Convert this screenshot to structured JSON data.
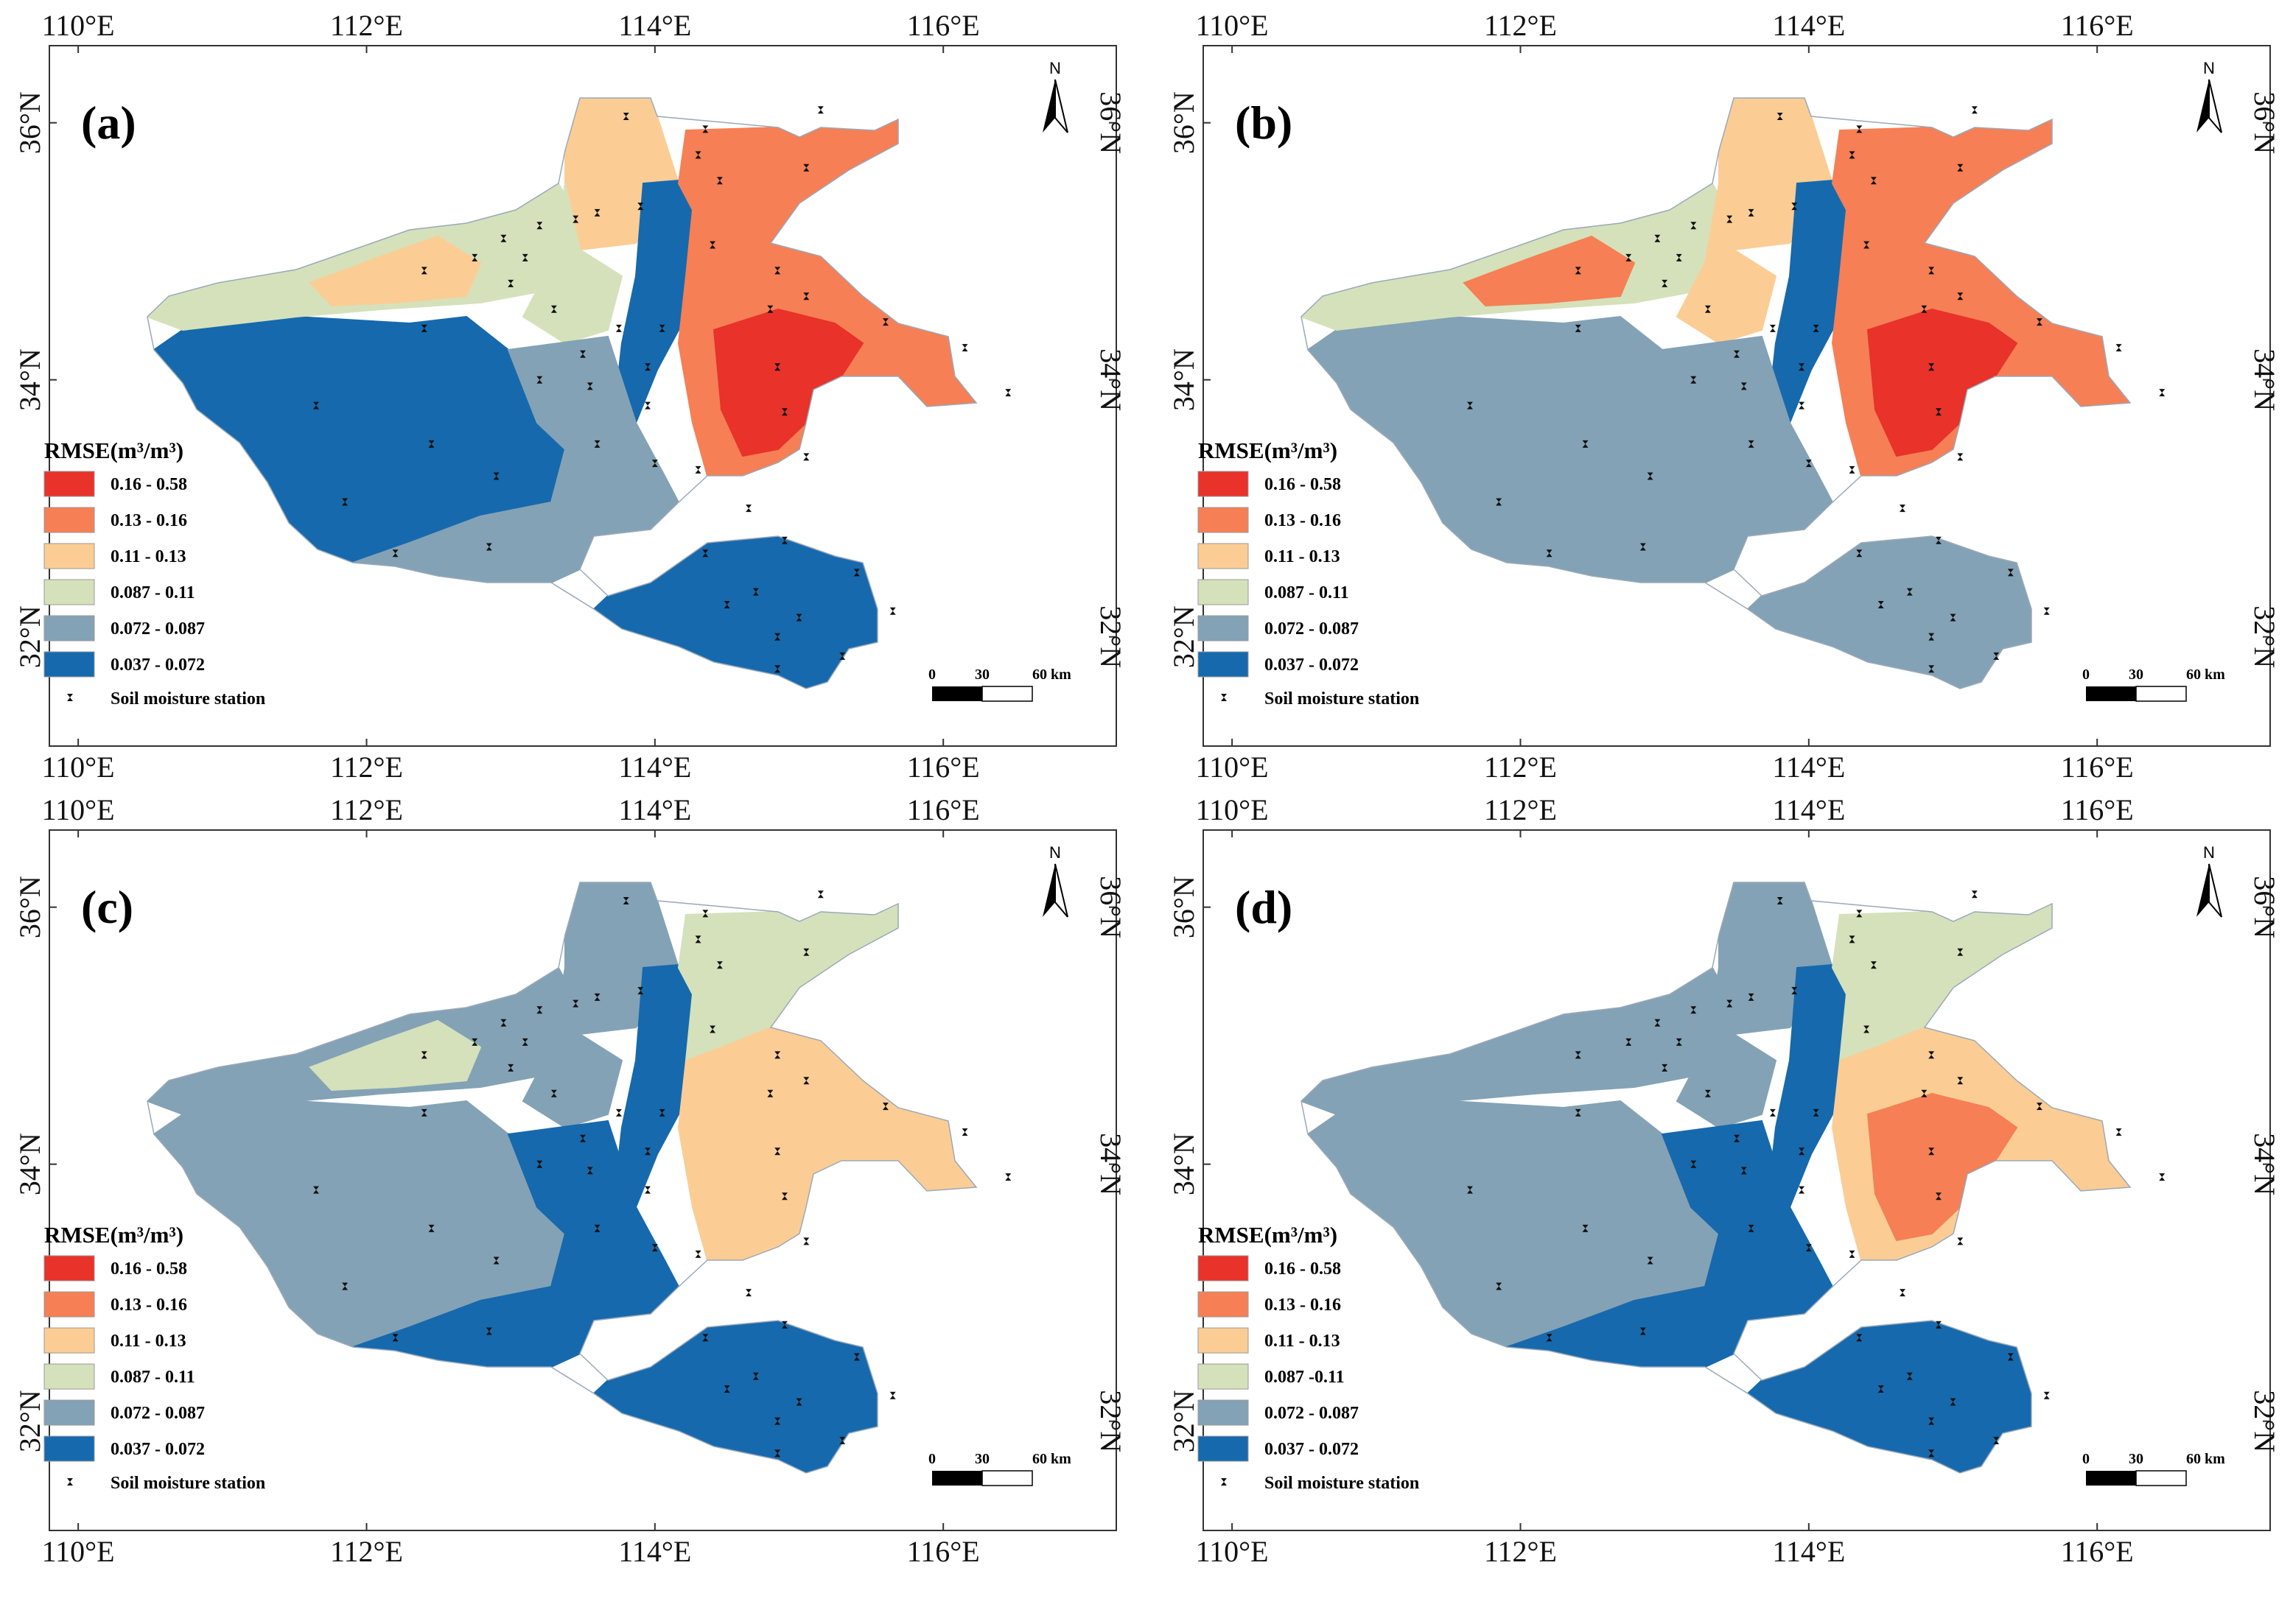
{
  "figure": {
    "lon_labels": [
      "110°E",
      "112°E",
      "114°E",
      "116°E"
    ],
    "lat_labels": [
      "36°N",
      "34°N",
      "32°N"
    ],
    "north_label": "N",
    "scale_labels": [
      "0",
      "30",
      "60 km"
    ],
    "legend_title": "RMSE(m³/m³)",
    "station_label": "Soil moisture station",
    "colors": [
      "#e8322a",
      "#f67f55",
      "#fbcd95",
      "#d5e1bb",
      "#84a2b5",
      "#1769ad"
    ]
  },
  "panels": [
    {
      "label": "(a)",
      "classes": [
        "0.16 - 0.58",
        "0.13 - 0.16",
        "0.11 - 0.13",
        "0.087 - 0.11",
        "0.072 - 0.087",
        "0.037 - 0.072"
      ],
      "fills": {
        "nw": "#fbcd95",
        "w": "#d5e1bb",
        "sw": "#1769ad",
        "c": "#84a2b5",
        "n": "#fbcd95",
        "nc": "#d5e1bb",
        "strip": "#1769ad",
        "ne": "#f67f55",
        "e": "#f67f55",
        "eh": "#e8322a",
        "s": "#1769ad"
      }
    },
    {
      "label": "(b)",
      "classes": [
        "0.16 - 0.58",
        "0.13 - 0.16",
        "0.11 - 0.13",
        "0.087 - 0.11",
        "0.072 - 0.087",
        "0.037 - 0.072"
      ],
      "fills": {
        "nw": "#f67f55",
        "w": "#d5e1bb",
        "sw": "#84a2b5",
        "c": "#84a2b5",
        "n": "#fbcd95",
        "nc": "#fbcd95",
        "strip": "#1769ad",
        "ne": "#f67f55",
        "e": "#f67f55",
        "eh": "#e8322a",
        "s": "#84a2b5"
      }
    },
    {
      "label": "(c)",
      "classes": [
        "0.16 - 0.58",
        "0.13 - 0.16",
        "0.11 - 0.13",
        "0.087 - 0.11",
        "0.072 - 0.087",
        "0.037 - 0.072"
      ],
      "fills": {
        "nw": "#d5e1bb",
        "w": "#84a2b5",
        "sw": "#84a2b5",
        "c": "#1769ad",
        "n": "#84a2b5",
        "nc": "#84a2b5",
        "strip": "#1769ad",
        "ne": "#d5e1bb",
        "e": "#fbcd95",
        "eh": "#fbcd95",
        "s": "#1769ad"
      }
    },
    {
      "label": "(d)",
      "classes": [
        "0.16 - 0.58",
        "0.13 - 0.16",
        "0.11 - 0.13",
        "0.087 -0.11",
        "0.072 - 0.087",
        "0.037 - 0.072"
      ],
      "fills": {
        "nw": "#84a2b5",
        "w": "#84a2b5",
        "sw": "#84a2b5",
        "c": "#1769ad",
        "n": "#84a2b5",
        "nc": "#84a2b5",
        "strip": "#1769ad",
        "ne": "#d5e1bb",
        "e": "#fbcd95",
        "eh": "#f67f55",
        "s": "#1769ad"
      }
    }
  ],
  "stations": [
    [
      113.8,
      36.05
    ],
    [
      114.35,
      35.95
    ],
    [
      115.15,
      36.1
    ],
    [
      114.3,
      35.75
    ],
    [
      114.45,
      35.55
    ],
    [
      115.05,
      35.65
    ],
    [
      113.6,
      35.3
    ],
    [
      113.45,
      35.25
    ],
    [
      113.2,
      35.2
    ],
    [
      112.95,
      35.1
    ],
    [
      113.1,
      34.95
    ],
    [
      112.75,
      34.95
    ],
    [
      113.9,
      35.35
    ],
    [
      114.4,
      35.05
    ],
    [
      112.4,
      34.85
    ],
    [
      113.0,
      34.75
    ],
    [
      114.85,
      34.85
    ],
    [
      115.05,
      34.65
    ],
    [
      114.8,
      34.55
    ],
    [
      113.3,
      34.55
    ],
    [
      115.6,
      34.45
    ],
    [
      112.4,
      34.4
    ],
    [
      113.75,
      34.4
    ],
    [
      114.05,
      34.4
    ],
    [
      116.15,
      34.25
    ],
    [
      113.5,
      34.2
    ],
    [
      114.85,
      34.1
    ],
    [
      113.95,
      34.1
    ],
    [
      113.2,
      34.0
    ],
    [
      113.55,
      33.95
    ],
    [
      116.45,
      33.9
    ],
    [
      113.95,
      33.8
    ],
    [
      114.9,
      33.75
    ],
    [
      111.65,
      33.8
    ],
    [
      112.45,
      33.5
    ],
    [
      113.6,
      33.5
    ],
    [
      115.05,
      33.4
    ],
    [
      114.0,
      33.35
    ],
    [
      114.3,
      33.3
    ],
    [
      112.9,
      33.25
    ],
    [
      111.85,
      33.05
    ],
    [
      114.65,
      33.0
    ],
    [
      114.9,
      32.75
    ],
    [
      112.85,
      32.7
    ],
    [
      112.2,
      32.65
    ],
    [
      114.35,
      32.65
    ],
    [
      115.4,
      32.5
    ],
    [
      114.7,
      32.35
    ],
    [
      114.5,
      32.25
    ],
    [
      115.0,
      32.15
    ],
    [
      115.65,
      32.2
    ],
    [
      114.85,
      32.0
    ],
    [
      115.3,
      31.85
    ],
    [
      114.85,
      31.75
    ]
  ]
}
